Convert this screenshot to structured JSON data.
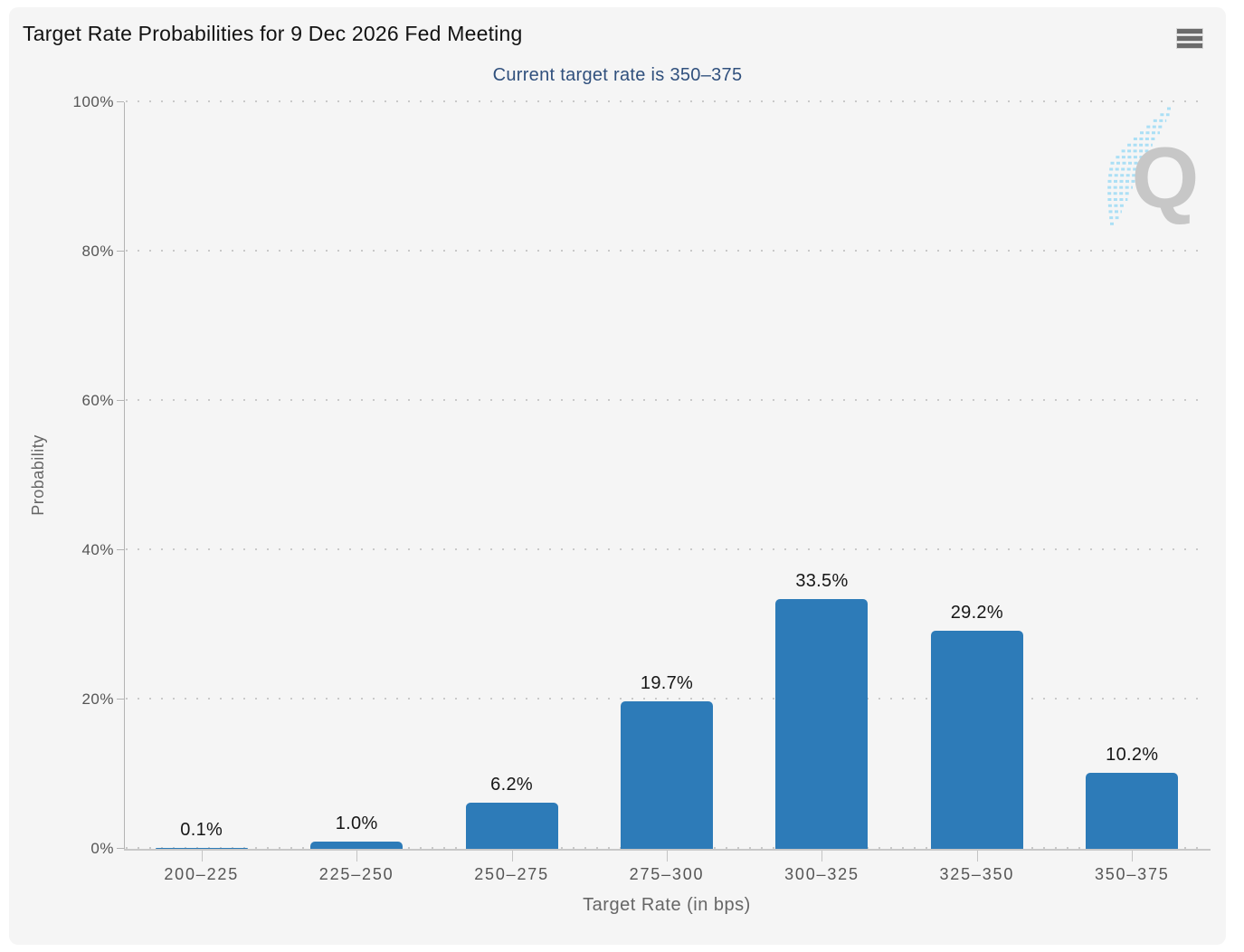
{
  "header": {
    "menu_tooltip": "Chart context menu"
  },
  "branding": {
    "watermark_letter": "Q"
  },
  "chart_data": {
    "type": "bar",
    "title": "Target Rate Probabilities for 9 Dec 2026 Fed Meeting",
    "subtitle": "Current target rate is 350–375",
    "categories": [
      "200–225",
      "225–250",
      "250–275",
      "275–300",
      "300–325",
      "325–350",
      "350–375"
    ],
    "values": [
      0.1,
      1.0,
      6.2,
      19.7,
      33.5,
      29.2,
      10.2
    ],
    "data_labels": [
      "0.1%",
      "1.0%",
      "6.2%",
      "19.7%",
      "33.5%",
      "29.2%",
      "10.2%"
    ],
    "xlabel": "Target Rate (in bps)",
    "ylabel": "Probability",
    "ylim": [
      0,
      100
    ],
    "yticks": [
      0,
      20,
      40,
      60,
      80,
      100
    ],
    "ytick_labels": [
      "0%",
      "20%",
      "40%",
      "60%",
      "80%",
      "100%"
    ],
    "grid": "horizontal-dotted",
    "legend": "none",
    "bar_color": "#2d7bb8"
  },
  "colors": {
    "page_bg": "#ffffff",
    "card_bg": "#f5f5f5",
    "bar": "#2d7bb8",
    "subtitle": "#30507d",
    "grid_dot": "#c9c9c9",
    "axis_line": "#c8c8c8",
    "tick_label": "#555555",
    "axis_title": "#666666",
    "data_label": "#161616",
    "watermark_q": "#c7c7c7",
    "watermark_streak": "#abdff5"
  }
}
